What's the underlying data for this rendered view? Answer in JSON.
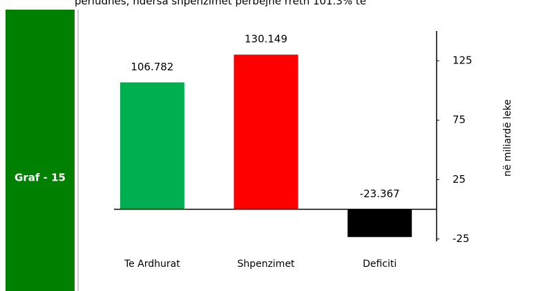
{
  "header": {
    "text": "periudhës, ndërsa shpenzimet përbëjnë rreth 101.3% të"
  },
  "sidebar": {
    "label": "Graf - 15"
  },
  "chart_data": {
    "type": "bar",
    "y_label": "në miliardë leke",
    "categories": [
      "Te Ardhurat",
      "Shpenzimet",
      "Deficiti"
    ],
    "values": [
      106.782,
      130.149,
      -23.367
    ],
    "colors": [
      "#00b050",
      "#ff0000",
      "#000000"
    ],
    "ylim": [
      -27,
      150
    ],
    "yticks": [
      -25,
      25,
      75,
      125
    ],
    "grid": false
  }
}
